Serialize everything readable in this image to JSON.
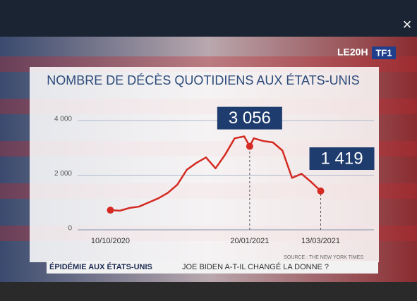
{
  "chart_data": {
    "type": "line",
    "title": "NOMBRE DE DÉCÈS QUOTIDIENS AUX ÉTATS-UNIS",
    "source": "SOURCE : THE NEW YORK TIMES",
    "x": [
      "2020-10-10",
      "2020-10-17",
      "2020-10-24",
      "2020-10-31",
      "2020-11-07",
      "2020-11-14",
      "2020-11-21",
      "2020-11-28",
      "2020-12-05",
      "2020-12-12",
      "2020-12-19",
      "2020-12-26",
      "2021-01-02",
      "2021-01-09",
      "2021-01-16",
      "2021-01-20",
      "2021-01-23",
      "2021-01-30",
      "2021-02-06",
      "2021-02-13",
      "2021-02-20",
      "2021-02-27",
      "2021-03-06",
      "2021-03-13"
    ],
    "values": [
      720,
      700,
      800,
      850,
      1000,
      1150,
      1350,
      1650,
      2200,
      2450,
      2650,
      2250,
      2750,
      3350,
      3420,
      3056,
      3350,
      3250,
      3200,
      2900,
      1900,
      2050,
      1750,
      1419
    ],
    "value_labels": [
      null,
      null,
      null,
      null,
      null,
      null,
      null,
      null,
      null,
      null,
      null,
      null,
      null,
      null,
      null,
      "3 056",
      null,
      null,
      null,
      null,
      null,
      null,
      null,
      "1 419"
    ],
    "color": "#d42a22",
    "xlim": [
      "2020-09-16",
      "2021-04-21"
    ],
    "xticks": [
      {
        "value": "2020-10-10",
        "label": "10/10/2020"
      },
      {
        "value": "2021-01-20",
        "label": "20/01/2021"
      },
      {
        "value": "2021-03-13",
        "label": "13/03/2021"
      }
    ],
    "ylim": [
      0,
      4000
    ],
    "yticks": [
      0,
      {
        "value": 2000,
        "label": "2 000"
      },
      {
        "value": 4000,
        "label": "4 000"
      }
    ],
    "grid": true
  },
  "overlay": {
    "logo": "LE20H",
    "channel": "TF1",
    "close": "×",
    "caption_title": "ÉPIDÉMIE AUX ÉTATS-UNIS",
    "caption_text": "JOE BIDEN A-T-IL CHANGÉ LA DONNE ?"
  }
}
